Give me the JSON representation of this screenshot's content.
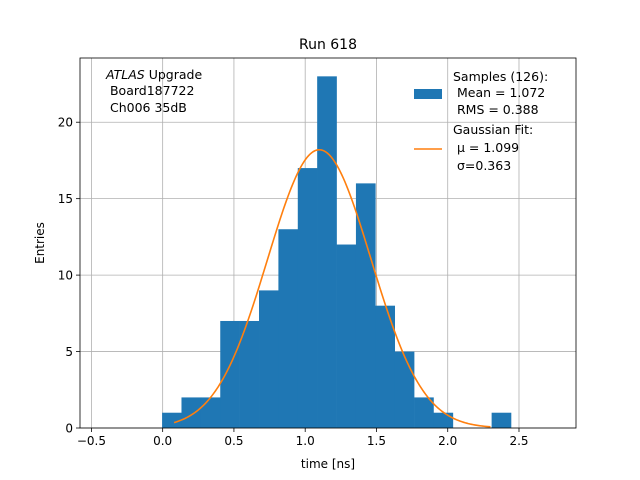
{
  "chart_data": {
    "type": "histogram",
    "title": "Run 618",
    "xlabel": "time [ns]",
    "ylabel": "Entries",
    "xlim": [
      -0.58,
      2.9
    ],
    "ylim": [
      0,
      24.2
    ],
    "x_ticks": [
      -0.5,
      0.0,
      0.5,
      1.0,
      1.5,
      2.0,
      2.5
    ],
    "x_tick_labels": [
      "−0.5",
      "0.0",
      "0.5",
      "1.0",
      "1.5",
      "2.0",
      "2.5"
    ],
    "y_ticks": [
      0,
      5,
      10,
      15,
      20
    ],
    "y_tick_labels": [
      "0",
      "5",
      "10",
      "15",
      "20"
    ],
    "grid": true,
    "legend_position": "top-right",
    "histogram": {
      "name": "Samples (126):",
      "color": "#1f77b4",
      "bin_edges": [
        -0.004,
        0.132,
        0.268,
        0.404,
        0.54,
        0.676,
        0.812,
        0.948,
        1.084,
        1.22,
        1.356,
        1.492,
        1.628,
        1.764,
        1.9,
        2.036,
        2.172,
        2.308,
        2.444
      ],
      "counts": [
        1,
        2,
        2,
        7,
        7,
        9,
        13,
        17,
        23,
        12,
        16,
        8,
        5,
        2,
        1,
        0,
        0,
        1
      ]
    },
    "fit": {
      "name": "Gaussian Fit:",
      "color": "#ff7f0e",
      "mu": 1.099,
      "sigma": 0.363,
      "amplitude": 18.2,
      "x_range": [
        0.08,
        2.3
      ]
    },
    "legend": {
      "hist_lines": [
        "Samples (126):",
        " Mean = 1.072",
        " RMS = 0.388"
      ],
      "fit_lines": [
        "Gaussian Fit:",
        " μ = 1.099",
        " σ=0.363"
      ]
    },
    "annotation": {
      "italic": "ATLAS",
      "rest": " Upgrade",
      "lines": [
        " Board187722",
        " Ch006 35dB"
      ]
    }
  }
}
